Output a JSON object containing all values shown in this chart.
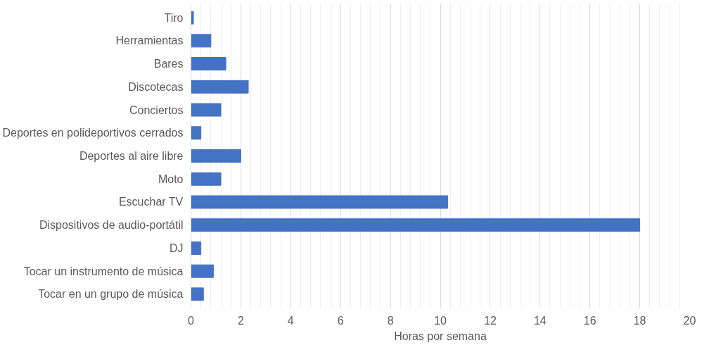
{
  "chart_data": {
    "type": "bar",
    "orientation": "horizontal",
    "xlabel": "Horas por semana",
    "categories": [
      "Tiro",
      "Herramientas",
      "Bares",
      "Discotecas",
      "Conciertos",
      "Deportes en polideportivos cerrados",
      "Deportes al aire libre",
      "Moto",
      "Escuchar TV",
      "Dispositivos de audio-portátil",
      "DJ",
      "Tocar un instrumento de música",
      "Tocar en un grupo de música"
    ],
    "values": [
      0.1,
      0.8,
      1.4,
      2.3,
      1.2,
      0.4,
      2.0,
      1.2,
      10.3,
      18.0,
      0.4,
      0.9,
      0.5
    ],
    "color": "#4472c4",
    "xlim": [
      0,
      20
    ],
    "xticks": [
      0,
      2,
      4,
      6,
      8,
      10,
      12,
      14,
      16,
      18,
      20
    ],
    "grid": "x"
  }
}
